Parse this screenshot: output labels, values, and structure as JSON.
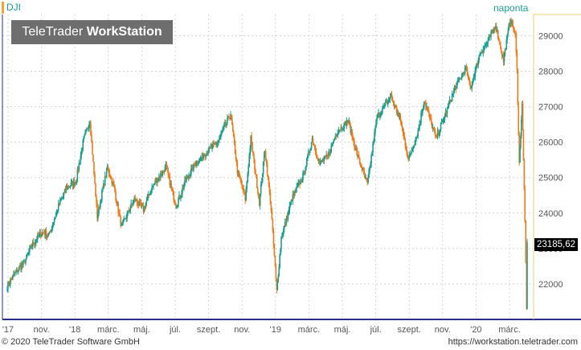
{
  "header": {
    "symbol": "DJI",
    "period": "naponta",
    "watermark_brand": "TeleTrader",
    "watermark_product": "WorkStation",
    "last_price": "23185,62"
  },
  "footer": {
    "copyright": "© 2020 TeleTrader Software GmbH",
    "url": "https://workstation.teletrader.com"
  },
  "colors": {
    "up": "#1a9e8c",
    "down": "#f07a1a",
    "grid": "#d4d4d4",
    "axis": "#2b2b8c",
    "accent": "#e8d070"
  },
  "chart_data": {
    "type": "candlestick",
    "x_tick_labels": [
      "'17",
      "nov.",
      "'18",
      "márc.",
      "máj.",
      "júl.",
      "szept.",
      "nov.",
      "'19",
      "márc.",
      "máj.",
      "júl.",
      "szept.",
      "nov.",
      "'20",
      "márc."
    ],
    "y_tick_labels": [
      "22000",
      "23000",
      "24000",
      "25000",
      "26000",
      "27000",
      "28000",
      "29000"
    ],
    "ylim": [
      21000,
      29600
    ],
    "anchors": [
      [
        "2017-09-01",
        21950
      ],
      [
        "2017-09-15",
        22300
      ],
      [
        "2017-10-01",
        22600
      ],
      [
        "2017-10-15",
        23100
      ],
      [
        "2017-11-01",
        23450
      ],
      [
        "2017-11-15",
        23400
      ],
      [
        "2017-12-01",
        24200
      ],
      [
        "2017-12-15",
        24700
      ],
      [
        "2018-01-01",
        24900
      ],
      [
        "2018-01-15",
        26100
      ],
      [
        "2018-01-26",
        26600
      ],
      [
        "2018-02-08",
        23900
      ],
      [
        "2018-02-26",
        25300
      ],
      [
        "2018-03-10",
        24700
      ],
      [
        "2018-03-23",
        23600
      ],
      [
        "2018-04-15",
        24400
      ],
      [
        "2018-05-01",
        24100
      ],
      [
        "2018-05-15",
        24700
      ],
      [
        "2018-06-10",
        25300
      ],
      [
        "2018-06-28",
        24200
      ],
      [
        "2018-07-15",
        24900
      ],
      [
        "2018-08-01",
        25400
      ],
      [
        "2018-08-20",
        25700
      ],
      [
        "2018-09-10",
        26000
      ],
      [
        "2018-10-03",
        26800
      ],
      [
        "2018-10-15",
        25200
      ],
      [
        "2018-10-29",
        24400
      ],
      [
        "2018-11-08",
        26100
      ],
      [
        "2018-11-23",
        24300
      ],
      [
        "2018-12-03",
        25800
      ],
      [
        "2018-12-14",
        24100
      ],
      [
        "2018-12-24",
        21800
      ],
      [
        "2019-01-01",
        23300
      ],
      [
        "2019-01-20",
        24400
      ],
      [
        "2019-02-10",
        25100
      ],
      [
        "2019-02-25",
        26100
      ],
      [
        "2019-03-10",
        25400
      ],
      [
        "2019-03-25",
        25600
      ],
      [
        "2019-04-10",
        26300
      ],
      [
        "2019-04-30",
        26600
      ],
      [
        "2019-05-15",
        25700
      ],
      [
        "2019-06-03",
        24800
      ],
      [
        "2019-06-20",
        26700
      ],
      [
        "2019-07-15",
        27300
      ],
      [
        "2019-08-01",
        26600
      ],
      [
        "2019-08-15",
        25500
      ],
      [
        "2019-09-01",
        26300
      ],
      [
        "2019-09-12",
        27200
      ],
      [
        "2019-10-03",
        26100
      ],
      [
        "2019-10-20",
        26800
      ],
      [
        "2019-11-05",
        27500
      ],
      [
        "2019-11-25",
        28100
      ],
      [
        "2019-12-03",
        27500
      ],
      [
        "2019-12-20",
        28500
      ],
      [
        "2020-01-02",
        28800
      ],
      [
        "2020-01-17",
        29300
      ],
      [
        "2020-01-31",
        28300
      ],
      [
        "2020-02-12",
        29500
      ],
      [
        "2020-02-21",
        29000
      ],
      [
        "2020-02-24",
        28000
      ],
      [
        "2020-02-28",
        25400
      ],
      [
        "2020-03-04",
        27100
      ],
      [
        "2020-03-09",
        23850
      ],
      [
        "2020-03-12",
        21200
      ],
      [
        "2020-03-13",
        23185
      ]
    ]
  }
}
